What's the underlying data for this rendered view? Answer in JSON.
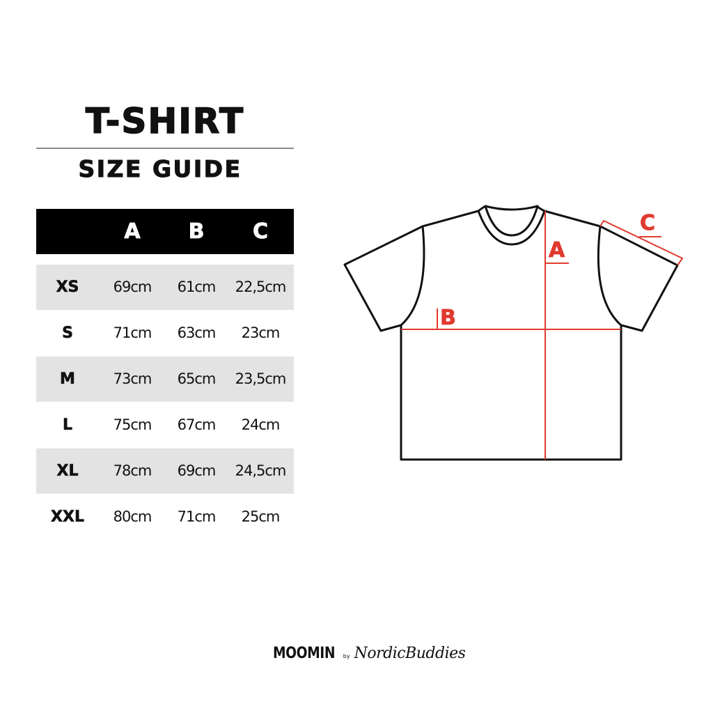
{
  "header": {
    "title": "T-SHIRT",
    "subtitle": "SIZE GUIDE"
  },
  "table": {
    "columns": [
      "",
      "A",
      "B",
      "C"
    ],
    "rows": [
      {
        "size": "XS",
        "a": "69cm",
        "b": "61cm",
        "c": "22,5cm"
      },
      {
        "size": "S",
        "a": "71cm",
        "b": "63cm",
        "c": "23cm"
      },
      {
        "size": "M",
        "a": "73cm",
        "b": "65cm",
        "c": "23,5cm"
      },
      {
        "size": "L",
        "a": "75cm",
        "b": "67cm",
        "c": "24cm"
      },
      {
        "size": "XL",
        "a": "78cm",
        "b": "69cm",
        "c": "24,5cm"
      },
      {
        "size": "XXL",
        "a": "80cm",
        "b": "71cm",
        "c": "25cm"
      }
    ]
  },
  "diagram": {
    "label_a": "A",
    "label_b": "B",
    "label_c": "C",
    "measure_color": "#e03a2e",
    "outline_color": "#111111"
  },
  "footer": {
    "brand": "MOOMIN",
    "by": "by",
    "partner": "NordicBuddies"
  }
}
